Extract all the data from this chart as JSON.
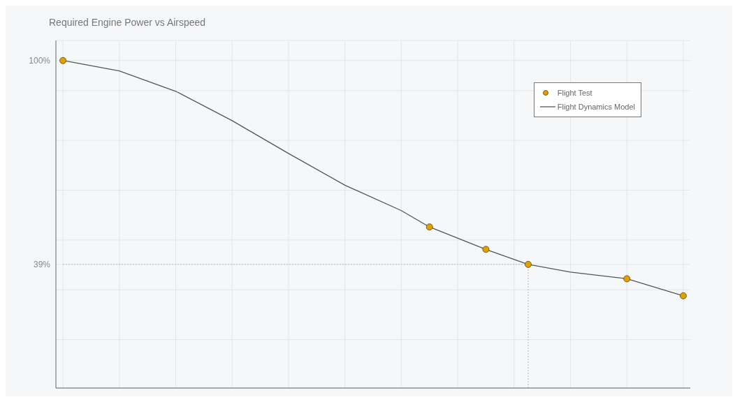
{
  "chart_data": {
    "type": "line",
    "title": "Required Engine Power vs Airspeed",
    "categories": [
      null,
      null,
      null,
      null,
      null,
      null,
      null,
      null,
      null,
      null,
      null,
      null,
      null,
      null,
      null,
      null,
      null,
      null,
      null,
      null,
      null,
      null,
      null,
      null,
      null,
      null,
      null,
      null,
      null,
      null,
      null,
      null,
      null,
      null,
      null,
      null,
      null,
      null,
      null,
      null,
      null,
      null,
      null,
      null,
      null
    ],
    "ylim": [
      2,
      106
    ],
    "yticks": [
      {
        "value": 16.5,
        "label": null
      },
      {
        "value": 31.4,
        "label": null
      },
      {
        "value": 39,
        "label": "39%"
      },
      {
        "value": 46.3,
        "label": null
      },
      {
        "value": 61.2,
        "label": null
      },
      {
        "value": 76.1,
        "label": null
      },
      {
        "value": 91,
        "label": null
      },
      {
        "value": 100,
        "label": "100%"
      }
    ],
    "tick_labels": "y",
    "grid": true,
    "legend": "top right",
    "ref_lines": [
      {
        "axis": "y",
        "value": 39,
        "color": "#bbbbbb",
        "line_style": "dotted"
      }
    ],
    "series": [
      {
        "name": "Flight Test",
        "type": "scatter",
        "color": "#e0a100",
        "marker": "circle",
        "values": [
          100,
          null,
          null,
          null,
          null,
          null,
          null,
          null,
          null,
          null,
          null,
          null,
          null,
          null,
          null,
          null,
          null,
          null,
          null,
          null,
          null,
          null,
          null,
          null,
          null,
          null,
          50.2,
          null,
          null,
          null,
          43.5,
          null,
          null,
          39,
          null,
          null,
          null,
          null,
          null,
          null,
          34.7,
          null,
          null,
          null,
          29.6
        ]
      },
      {
        "name": "Flight Dynamics Model",
        "color": "#555555",
        "line_style": "solid",
        "marker": "none",
        "values": [
          100,
          null,
          null,
          null,
          96.9,
          null,
          null,
          null,
          90.8,
          null,
          null,
          null,
          82,
          null,
          null,
          null,
          72.2,
          null,
          null,
          null,
          62.7,
          null,
          null,
          null,
          55.1,
          null,
          50.2,
          null,
          null,
          null,
          43.5,
          null,
          null,
          39,
          null,
          null,
          36.7,
          null,
          null,
          null,
          34.7,
          null,
          null,
          null,
          29.6
        ]
      }
    ]
  }
}
